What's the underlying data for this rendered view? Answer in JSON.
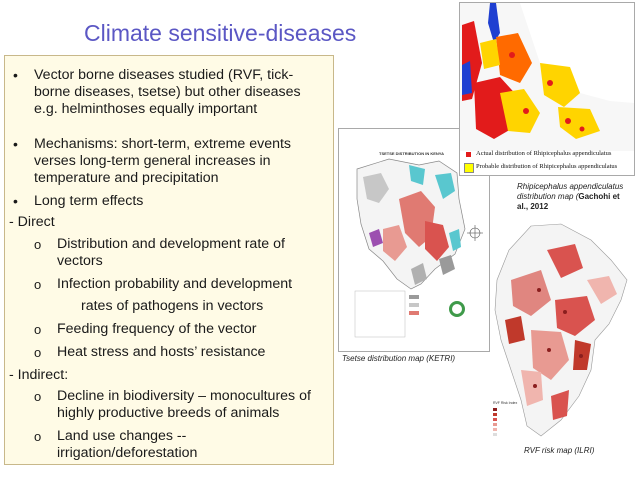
{
  "slide": {
    "title": "Climate sensitive-diseases",
    "body": [
      {
        "marker": "•",
        "lines": [
          "Vector borne diseases studied (RVF, tick-",
          "borne  diseases, tsetse) but other diseases",
          "e.g. helminthoses equally important"
        ]
      },
      {
        "marker": "•",
        "lines": [
          "Mechanisms: short-term, extreme events",
          "verses long-term general increases in",
          "temperature and precipitation"
        ]
      },
      {
        "marker": "•",
        "lines": [
          "Long term effects"
        ]
      },
      {
        "marker": "",
        "lines": [
          "- Direct"
        ]
      },
      {
        "marker": "o",
        "lines": [
          "Distribution and development rate of",
          "vectors"
        ]
      },
      {
        "marker": "o",
        "lines": [
          "Infection probability and development",
          "rates of pathogens in vectors"
        ]
      },
      {
        "marker": "o",
        "lines": [
          "Feeding frequency of the vector"
        ]
      },
      {
        "marker": "o",
        "lines": [
          "Heat stress and hosts’ resistance"
        ]
      },
      {
        "marker": "",
        "lines": [
          "- Indirect:"
        ]
      },
      {
        "marker": "o",
        "lines": [
          "Decline in biodiversity – monocultures of",
          "highly productive breeds of animals"
        ]
      },
      {
        "marker": "o",
        "lines": [
          "Land use changes --",
          "irrigation/deforestation"
        ]
      }
    ]
  },
  "maps": {
    "tsetse": {
      "inner_title": "TSETSE DISTRIBUTION IN KENYA",
      "caption": "Tsetse distribution map (KETRI)"
    },
    "rhipicephalus": {
      "legend_actual": "Actual distribution of Rhipicephalus appendiculatus",
      "legend_probable": "Probable distribution of Rhipicephalus appendiculatus",
      "caption_line1": "Rhipicephalus appendiculatus",
      "caption_line2": "distribution map (",
      "caption_bold1": "Gachohi et",
      "caption_bold2": "al., 2012"
    },
    "rvf": {
      "legend_title": "RVF Risk Index",
      "caption": "RVF risk map (ILRI)"
    }
  },
  "colors": {
    "title": "#5b57c4",
    "textbox_bg": "#fffbe6",
    "map_red": "#d9534f",
    "tick_red": "#e21b1b",
    "tick_yellow": "#ffd400",
    "lake_blue": "#1f3fd1"
  }
}
